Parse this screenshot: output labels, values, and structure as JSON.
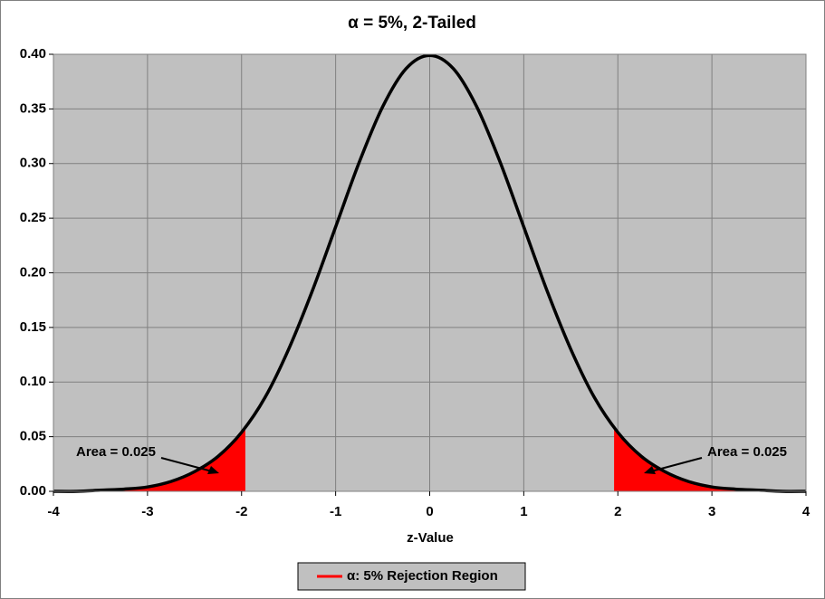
{
  "chart_data": {
    "type": "line",
    "title": "α = 5%, 2-Tailed",
    "x_label": "z-Value",
    "xlim": [
      -4,
      4
    ],
    "xticks": [
      -4,
      -3,
      -2,
      -1,
      0,
      1,
      2,
      3,
      4
    ],
    "ylim": [
      0,
      0.4
    ],
    "yticks": [
      {
        "value": 0,
        "label": "0.00"
      },
      {
        "value": 0.05,
        "label": "0.05"
      },
      {
        "value": 0.1,
        "label": "0.10"
      },
      {
        "value": 0.15,
        "label": "0.15"
      },
      {
        "value": 0.2,
        "label": "0.20"
      },
      {
        "value": 0.25,
        "label": "0.25"
      },
      {
        "value": 0.3,
        "label": "0.30"
      },
      {
        "value": 0.35,
        "label": "0.35"
      },
      {
        "value": 0.4,
        "label": "0.40"
      }
    ],
    "grid": true,
    "series": [
      {
        "color": "#000000",
        "x": [
          -4,
          -3.75,
          -3.5,
          -3.25,
          -3,
          -2.75,
          -2.5,
          -2.25,
          -2,
          -1.75,
          -1.5,
          -1.25,
          -1,
          -0.75,
          -0.5,
          -0.25,
          0,
          0.25,
          0.5,
          0.75,
          1,
          1.25,
          1.5,
          1.75,
          2,
          2.25,
          2.5,
          2.75,
          3,
          3.25,
          3.5,
          3.75,
          4
        ],
        "values": [
          0.0,
          0.0,
          0.001,
          0.002,
          0.004,
          0.009,
          0.018,
          0.032,
          0.054,
          0.086,
          0.13,
          0.183,
          0.242,
          0.301,
          0.352,
          0.387,
          0.399,
          0.387,
          0.352,
          0.301,
          0.242,
          0.183,
          0.13,
          0.086,
          0.054,
          0.032,
          0.018,
          0.009,
          0.004,
          0.002,
          0.001,
          0.0,
          0.0
        ]
      },
      {
        "name": "α: 5% Rejection Region",
        "color": "#ff0000",
        "area": true,
        "x": [
          -4,
          -3.5,
          -3,
          -2.5,
          -2.25,
          -1.96,
          null,
          1.96,
          2.25,
          2.5,
          3,
          3.5,
          4
        ],
        "values": [
          0.0,
          0.001,
          0.004,
          0.018,
          0.032,
          0.058,
          null,
          0.058,
          0.032,
          0.018,
          0.004,
          0.001,
          0.0
        ]
      }
    ],
    "annotations": [
      "Area = 0.025",
      "Area = 0.025"
    ],
    "legend": "bottom"
  }
}
